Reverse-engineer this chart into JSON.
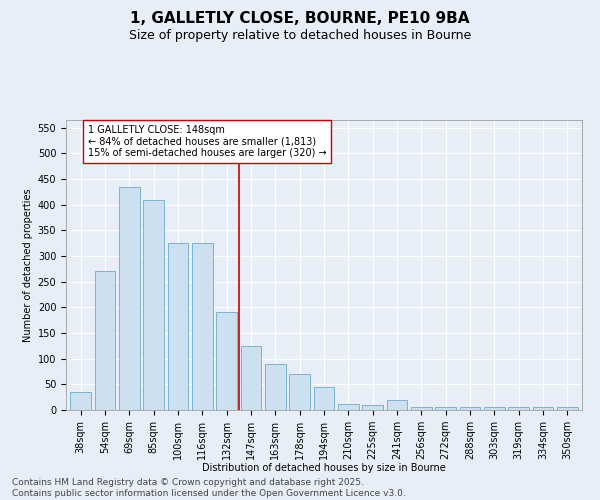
{
  "title": "1, GALLETLY CLOSE, BOURNE, PE10 9BA",
  "subtitle": "Size of property relative to detached houses in Bourne",
  "xlabel": "Distribution of detached houses by size in Bourne",
  "ylabel": "Number of detached properties",
  "categories": [
    "38sqm",
    "54sqm",
    "69sqm",
    "85sqm",
    "100sqm",
    "116sqm",
    "132sqm",
    "147sqm",
    "163sqm",
    "178sqm",
    "194sqm",
    "210sqm",
    "225sqm",
    "241sqm",
    "256sqm",
    "272sqm",
    "288sqm",
    "303sqm",
    "319sqm",
    "334sqm",
    "350sqm"
  ],
  "values": [
    35,
    270,
    435,
    410,
    325,
    325,
    190,
    125,
    90,
    70,
    45,
    12,
    10,
    20,
    5,
    5,
    5,
    5,
    5,
    5,
    5
  ],
  "bar_color": "#cce0f0",
  "bar_edge_color": "#7ab4d4",
  "vline_color": "#cc0000",
  "vline_index": 6.5,
  "annotation_text": "1 GALLETLY CLOSE: 148sqm\n← 84% of detached houses are smaller (1,813)\n15% of semi-detached houses are larger (320) →",
  "annotation_box_facecolor": "#ffffff",
  "annotation_box_edgecolor": "#cc0000",
  "ylim": [
    0,
    565
  ],
  "yticks": [
    0,
    50,
    100,
    150,
    200,
    250,
    300,
    350,
    400,
    450,
    500,
    550
  ],
  "bg_color": "#e8eef8",
  "footer": "Contains HM Land Registry data © Crown copyright and database right 2025.\nContains public sector information licensed under the Open Government Licence v3.0.",
  "title_fontsize": 11,
  "subtitle_fontsize": 9,
  "axis_fontsize": 7,
  "tick_fontsize": 7,
  "annotation_fontsize": 7,
  "footer_fontsize": 6.5
}
